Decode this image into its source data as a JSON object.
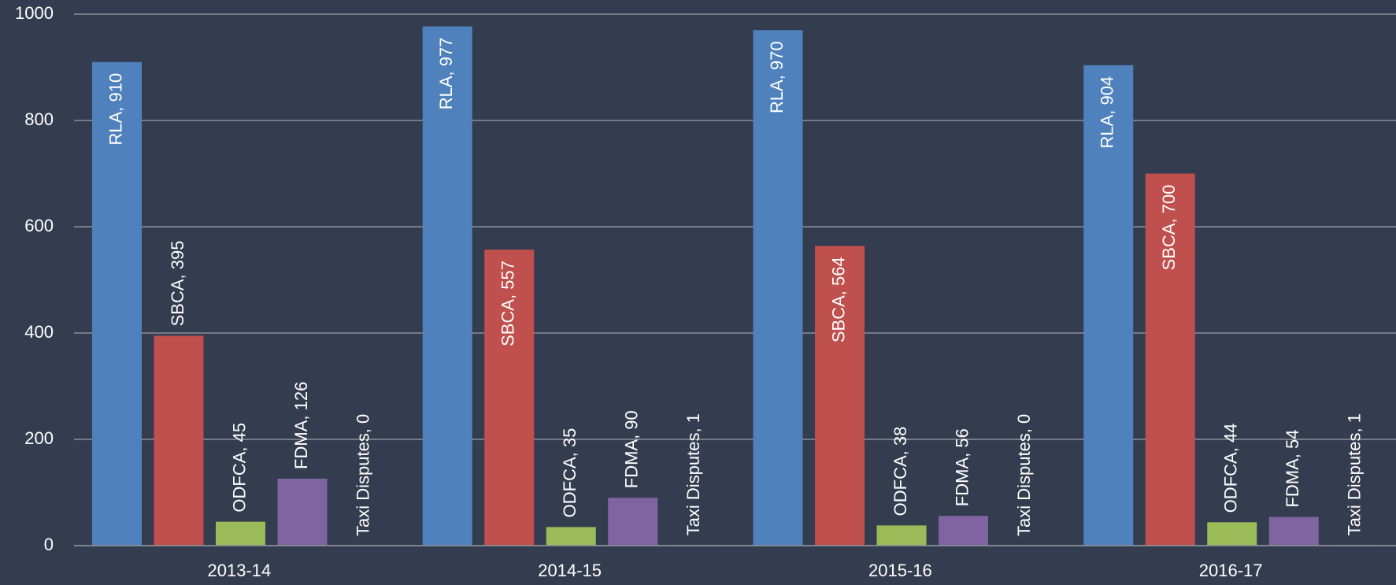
{
  "chart_data": {
    "type": "bar",
    "categories": [
      "2013-14",
      "2014-15",
      "2015-16",
      "2016-17"
    ],
    "series": [
      {
        "name": "RLA",
        "color": "#4f81bd",
        "values": [
          910,
          977,
          970,
          904
        ],
        "value_labels": [
          "RLA, 910",
          "RLA, 977",
          "RLA, 970",
          "RLA, 904"
        ]
      },
      {
        "name": "SBCA",
        "color": "#c0504d",
        "values": [
          395,
          557,
          564,
          700
        ],
        "value_labels": [
          "SBCA, 395",
          "SBCA, 557",
          "SBCA, 564",
          "SBCA, 700"
        ]
      },
      {
        "name": "ODFCA",
        "color": "#9bbb59",
        "values": [
          45,
          35,
          38,
          44
        ],
        "value_labels": [
          "ODFCA, 45",
          "ODFCA, 35",
          "ODFCA, 38",
          "ODFCA, 44"
        ]
      },
      {
        "name": "FDMA",
        "color": "#8064a2",
        "values": [
          126,
          90,
          56,
          54
        ],
        "value_labels": [
          "FDMA, 126",
          "FDMA, 90",
          "FDMA, 56",
          "FDMA, 54"
        ]
      },
      {
        "name": "Taxi Disputes",
        "color": "#4bacc6",
        "values": [
          0,
          1,
          0,
          1
        ],
        "value_labels": [
          "Taxi Disputes, 0",
          "Taxi Disputes, 1",
          "Taxi Disputes, 0",
          "Taxi Disputes, 1"
        ]
      }
    ],
    "ylim": [
      0,
      1000
    ],
    "yticks": [
      0,
      200,
      400,
      600,
      800,
      1000
    ],
    "grid": true
  }
}
